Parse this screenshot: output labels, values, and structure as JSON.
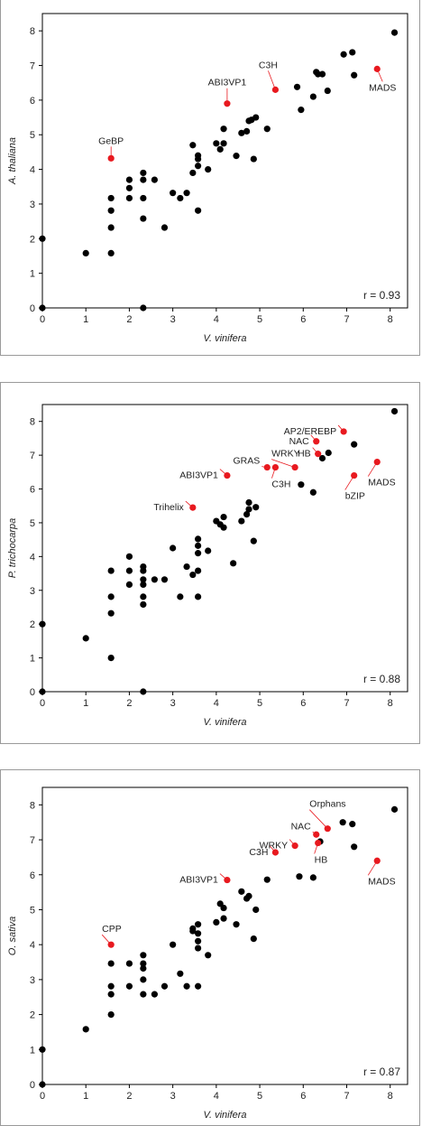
{
  "charts": [
    {
      "chart_data": {
        "type": "scatter",
        "title": "",
        "xlabel": "V. vinifera",
        "ylabel": "A. thaliana",
        "xlim": [
          0,
          8.4
        ],
        "ylim": [
          0,
          8.5
        ],
        "xticks": [
          "0",
          "1",
          "2",
          "3",
          "4",
          "5",
          "6",
          "7",
          "8"
        ],
        "yticks": [
          "0",
          "1",
          "2",
          "3",
          "4",
          "5",
          "6",
          "7",
          "8"
        ],
        "r_text": "r = 0.93",
        "colors": {
          "black": "#000000",
          "highlight": "#e8191f"
        },
        "points_black": [
          [
            0,
            0
          ],
          [
            0,
            2
          ],
          [
            1,
            1.58
          ],
          [
            1.58,
            1.58
          ],
          [
            1.58,
            2.32
          ],
          [
            1.58,
            2.81
          ],
          [
            1.58,
            3.17
          ],
          [
            2,
            3.17
          ],
          [
            2,
            3.46
          ],
          [
            2,
            3.7
          ],
          [
            2.32,
            2.58
          ],
          [
            2.32,
            3.17
          ],
          [
            2.32,
            3.7
          ],
          [
            2.32,
            3.9
          ],
          [
            2.32,
            0
          ],
          [
            2.58,
            3.7
          ],
          [
            2.81,
            2.32
          ],
          [
            3,
            3.32
          ],
          [
            3.17,
            3.17
          ],
          [
            3.32,
            3.32
          ],
          [
            3.46,
            3.9
          ],
          [
            3.46,
            4.7
          ],
          [
            3.58,
            2.81
          ],
          [
            3.58,
            4.1
          ],
          [
            3.58,
            4.3
          ],
          [
            3.58,
            4.4
          ],
          [
            3.81,
            4.0
          ],
          [
            4,
            4.75
          ],
          [
            4.09,
            4.58
          ],
          [
            4.17,
            4.75
          ],
          [
            4.17,
            5.17
          ],
          [
            4.46,
            4.39
          ],
          [
            4.58,
            5.05
          ],
          [
            4.7,
            5.1
          ],
          [
            4.75,
            5.4
          ],
          [
            4.81,
            5.43
          ],
          [
            4.86,
            4.3
          ],
          [
            4.91,
            5.5
          ],
          [
            5.17,
            5.17
          ],
          [
            5.86,
            6.38
          ],
          [
            5.95,
            5.72
          ],
          [
            6.23,
            6.1
          ],
          [
            6.3,
            6.81
          ],
          [
            6.34,
            6.75
          ],
          [
            6.44,
            6.75
          ],
          [
            6.56,
            6.27
          ],
          [
            6.93,
            7.32
          ],
          [
            7.13,
            7.38
          ],
          [
            7.17,
            6.72
          ],
          [
            8.1,
            7.95
          ]
        ],
        "points_red": [
          {
            "x": 1.58,
            "y": 4.32,
            "label": "GeBP"
          },
          {
            "x": 4.25,
            "y": 5.9,
            "label": "ABI3VP1"
          },
          {
            "x": 5.36,
            "y": 6.3,
            "label": "C3H"
          },
          {
            "x": 7.7,
            "y": 6.9,
            "label": "MADS"
          }
        ]
      }
    },
    {
      "chart_data": {
        "type": "scatter",
        "title": "",
        "xlabel": "V. vinifera",
        "ylabel": "P. trichocarpa",
        "xlim": [
          0,
          8.4
        ],
        "ylim": [
          0,
          8.5
        ],
        "xticks": [
          "0",
          "1",
          "2",
          "3",
          "4",
          "5",
          "6",
          "7",
          "8"
        ],
        "yticks": [
          "0",
          "1",
          "2",
          "3",
          "4",
          "5",
          "6",
          "7",
          "8"
        ],
        "r_text": "r = 0.88",
        "colors": {
          "black": "#000000",
          "highlight": "#e8191f"
        },
        "points_black": [
          [
            0,
            0
          ],
          [
            0,
            2
          ],
          [
            1,
            1.58
          ],
          [
            1.58,
            1
          ],
          [
            1.58,
            2.32
          ],
          [
            1.58,
            2.81
          ],
          [
            1.58,
            3.58
          ],
          [
            2,
            3.17
          ],
          [
            2,
            3.58
          ],
          [
            2,
            4.0
          ],
          [
            2.32,
            0
          ],
          [
            2.32,
            2.58
          ],
          [
            2.32,
            2.81
          ],
          [
            2.32,
            3.17
          ],
          [
            2.32,
            3.32
          ],
          [
            2.32,
            3.58
          ],
          [
            2.32,
            3.7
          ],
          [
            2.58,
            3.32
          ],
          [
            2.81,
            3.32
          ],
          [
            3,
            4.25
          ],
          [
            3.17,
            2.81
          ],
          [
            3.32,
            3.7
          ],
          [
            3.46,
            3.46
          ],
          [
            3.58,
            2.81
          ],
          [
            3.58,
            3.58
          ],
          [
            3.58,
            4.1
          ],
          [
            3.58,
            4.32
          ],
          [
            3.58,
            4.52
          ],
          [
            3.81,
            4.17
          ],
          [
            4,
            5.05
          ],
          [
            4.09,
            4.95
          ],
          [
            4.17,
            4.86
          ],
          [
            4.17,
            5.17
          ],
          [
            4.39,
            3.8
          ],
          [
            4.58,
            5.05
          ],
          [
            4.7,
            5.25
          ],
          [
            4.75,
            5.4
          ],
          [
            4.75,
            5.6
          ],
          [
            4.86,
            4.46
          ],
          [
            4.91,
            5.46
          ],
          [
            5.95,
            6.13
          ],
          [
            6.23,
            5.9
          ],
          [
            6.44,
            6.91
          ],
          [
            6.58,
            7.07
          ],
          [
            7.17,
            7.32
          ],
          [
            8.1,
            8.3
          ]
        ],
        "points_red": [
          {
            "x": 3.46,
            "y": 5.45,
            "label": "Trihelix"
          },
          {
            "x": 4.25,
            "y": 6.4,
            "label": "ABI3VP1"
          },
          {
            "x": 5.17,
            "y": 6.64,
            "label": "GRAS"
          },
          {
            "x": 5.36,
            "y": 6.64,
            "label": "C3H"
          },
          {
            "x": 5.81,
            "y": 6.64,
            "label": "WRKY"
          },
          {
            "x": 6.3,
            "y": 7.41,
            "label": "NAC"
          },
          {
            "x": 6.34,
            "y": 7.04,
            "label": "HB"
          },
          {
            "x": 6.93,
            "y": 7.7,
            "label": "AP2/EREBP"
          },
          {
            "x": 7.17,
            "y": 6.4,
            "label": "bZIP"
          },
          {
            "x": 7.7,
            "y": 6.8,
            "label": "MADS"
          }
        ]
      }
    },
    {
      "chart_data": {
        "type": "scatter",
        "title": "",
        "xlabel": "V. vinifera",
        "ylabel": "O. sativa",
        "xlim": [
          0,
          8.4
        ],
        "ylim": [
          0,
          8.5
        ],
        "xticks": [
          "0",
          "1",
          "2",
          "3",
          "4",
          "5",
          "6",
          "7",
          "8"
        ],
        "yticks": [
          "0",
          "1",
          "2",
          "3",
          "4",
          "5",
          "6",
          "7",
          "8"
        ],
        "r_text": "r = 0.87",
        "colors": {
          "black": "#000000",
          "highlight": "#e8191f"
        },
        "points_black": [
          [
            0,
            0
          ],
          [
            0,
            1
          ],
          [
            1,
            1.58
          ],
          [
            1.58,
            2
          ],
          [
            1.58,
            2.58
          ],
          [
            1.58,
            2.81
          ],
          [
            1.58,
            3.46
          ],
          [
            2,
            2.81
          ],
          [
            2,
            3.46
          ],
          [
            2.32,
            2.58
          ],
          [
            2.32,
            3.0
          ],
          [
            2.32,
            3.32
          ],
          [
            2.32,
            3.46
          ],
          [
            2.32,
            3.7
          ],
          [
            2.58,
            2.58
          ],
          [
            2.81,
            2.81
          ],
          [
            3,
            4.0
          ],
          [
            3.17,
            3.17
          ],
          [
            3.32,
            2.81
          ],
          [
            3.46,
            4.39
          ],
          [
            3.46,
            4.46
          ],
          [
            3.58,
            2.81
          ],
          [
            3.58,
            3.9
          ],
          [
            3.58,
            4.1
          ],
          [
            3.58,
            4.32
          ],
          [
            3.58,
            4.58
          ],
          [
            3.81,
            3.7
          ],
          [
            4,
            4.64
          ],
          [
            4.09,
            5.17
          ],
          [
            4.17,
            4.75
          ],
          [
            4.17,
            5.05
          ],
          [
            4.46,
            4.58
          ],
          [
            4.58,
            5.52
          ],
          [
            4.7,
            5.32
          ],
          [
            4.75,
            5.39
          ],
          [
            4.86,
            4.17
          ],
          [
            4.91,
            5.0
          ],
          [
            5.17,
            5.86
          ],
          [
            5.91,
            5.95
          ],
          [
            6.23,
            5.92
          ],
          [
            6.39,
            6.95
          ],
          [
            6.91,
            7.5
          ],
          [
            7.13,
            7.45
          ],
          [
            7.17,
            6.8
          ],
          [
            8.1,
            7.87
          ]
        ],
        "points_red": [
          {
            "x": 1.58,
            "y": 4.0,
            "label": "CPP"
          },
          {
            "x": 4.25,
            "y": 5.85,
            "label": "ABI3VP1"
          },
          {
            "x": 5.36,
            "y": 6.64,
            "label": "C3H"
          },
          {
            "x": 5.81,
            "y": 6.83,
            "label": "WRKY"
          },
          {
            "x": 6.3,
            "y": 7.15,
            "label": "NAC"
          },
          {
            "x": 6.34,
            "y": 6.91,
            "label": "HB"
          },
          {
            "x": 6.56,
            "y": 7.32,
            "label": "Orphans"
          },
          {
            "x": 7.7,
            "y": 6.4,
            "label": "MADS"
          }
        ]
      }
    }
  ]
}
